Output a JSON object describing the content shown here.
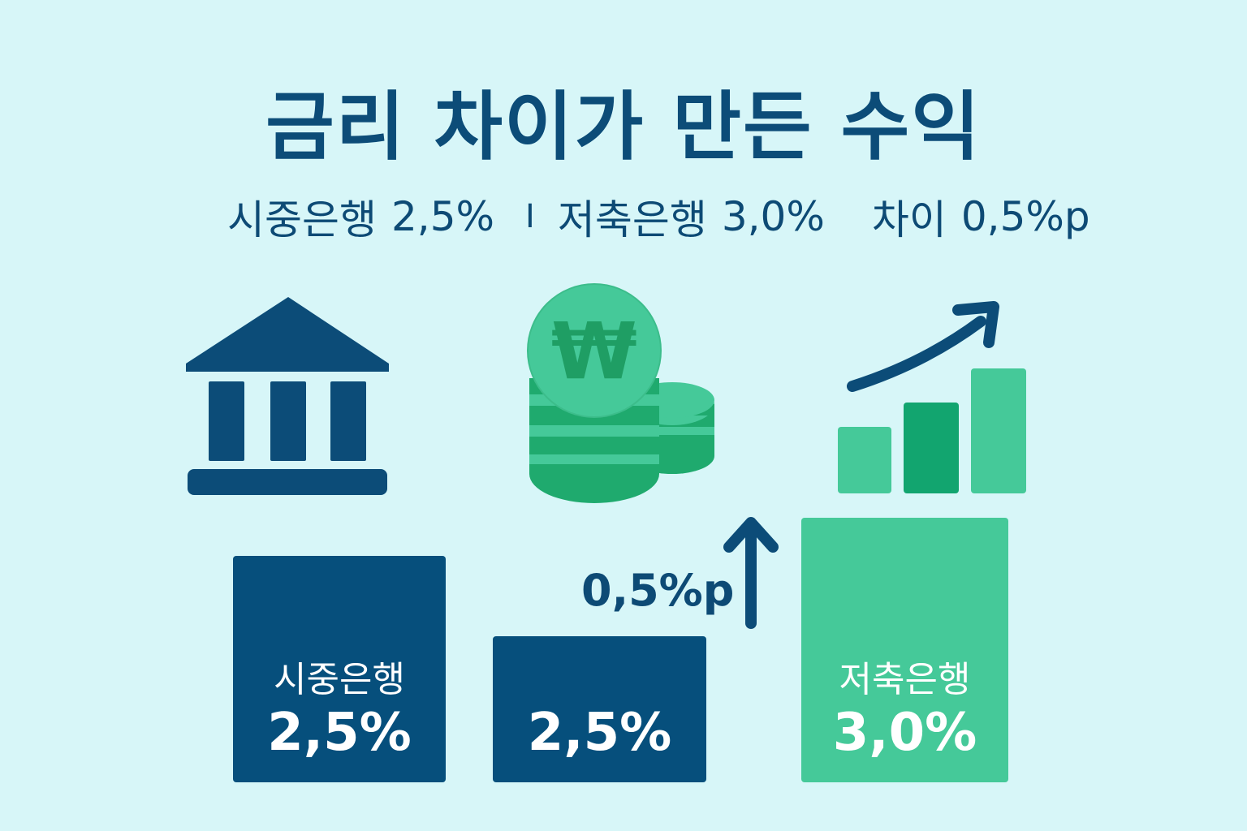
{
  "title": "금리 차이가 만든 수익",
  "summary": {
    "bank_label": "시중은행",
    "bank_rate": "2,5%",
    "separator": "I",
    "savings_label": "저축은행",
    "savings_rate": "3,0%",
    "diff_label": "차이",
    "diff_value": "0,5%p"
  },
  "icons": {
    "bank": "bank-building-icon",
    "coins": "won-coin-stack-icon",
    "growth": "bar-growth-arrow-icon",
    "up_arrow": "up-arrow-icon",
    "currency_symbol": "₩"
  },
  "bars": [
    {
      "name": "시중은행",
      "rate": "2,5%"
    },
    {
      "rate": "2,5%"
    },
    {
      "name": "저축은행",
      "rate": "3,0%"
    }
  ],
  "diff_annotation": "0,5%p",
  "colors": {
    "background": "#d7f6f8",
    "navy": "#064f7c",
    "green": "#45c999",
    "dark_green": "#12a56f"
  }
}
